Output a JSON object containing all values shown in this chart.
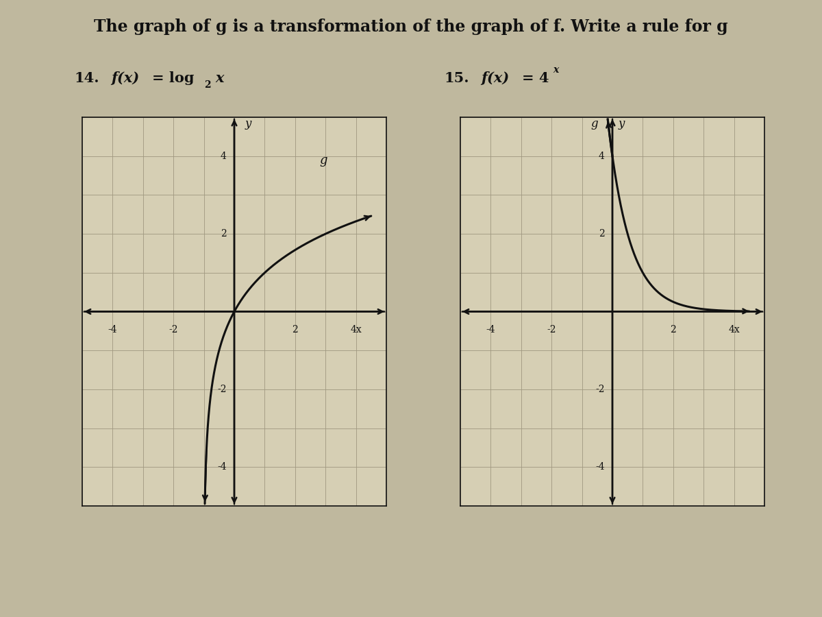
{
  "title": "The graph of g is a transformation of the graph of f. Write a rule for g",
  "problem14_label": "14.",
  "problem14_fx": "f(x) = log",
  "problem14_base": "2",
  "problem14_var": " x",
  "problem15_label": "15.",
  "problem15_fx": "f(x) = 4",
  "problem15_exp": "x",
  "background_color": "#bfb89e",
  "graph_bg_color": "#d6cfb4",
  "grid_color": "#a09880",
  "axis_color": "#111111",
  "curve_color": "#111111",
  "border_color": "#111111",
  "xlim": [
    -5,
    5
  ],
  "ylim": [
    -5,
    5
  ],
  "xticks": [
    -4,
    -2,
    2,
    4
  ],
  "yticks": [
    -4,
    -2,
    2,
    4
  ],
  "graph14_g_label": "g",
  "graph15_g_label": "g",
  "curve_lw": 2.2,
  "axis_lw": 1.8,
  "grid_lw": 0.6
}
